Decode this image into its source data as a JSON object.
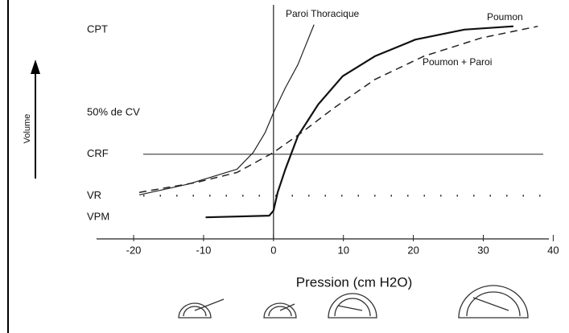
{
  "chart_data": {
    "type": "line",
    "x_label": "Pression (cm H2O)",
    "y_label": "Volume",
    "xlim": [
      -21.5,
      40.3
    ],
    "xticks": [
      -20,
      -10,
      0,
      10,
      20,
      30,
      40
    ],
    "ylim": [
      -26,
      113
    ],
    "yticks": [
      {
        "value": 100,
        "label": "CPT"
      },
      {
        "value": 50,
        "label": "50% de CV"
      },
      {
        "value": 25,
        "label": "CRF"
      },
      {
        "value": 0,
        "label": "VR"
      },
      {
        "value": -13,
        "label": "VPM"
      }
    ],
    "hlines": [
      {
        "y": 25,
        "style": "solid"
      },
      {
        "y": 0,
        "style": "dotted"
      }
    ],
    "series": [
      {
        "name": "Paroi Thoracique",
        "color": "#222222",
        "dash": false,
        "width": 1.2,
        "x": [
          -19.2,
          -12.2,
          -5.2,
          -2.9,
          -1.2,
          0,
          1.7,
          3.5,
          5.8
        ],
        "values": [
          0.5,
          7,
          16,
          26,
          38,
          50,
          65,
          79,
          103
        ]
      },
      {
        "name": "Poumon",
        "color": "#111111",
        "dash": false,
        "width": 2.2,
        "x": [
          -9.7,
          -0.6,
          0,
          0.6,
          1.7,
          3.5,
          6.4,
          9.9,
          14.5,
          20.3,
          27.3,
          34.3
        ],
        "values": [
          -13,
          -12,
          -9,
          2,
          16,
          36,
          55,
          72,
          84,
          94,
          100,
          102
        ]
      },
      {
        "name": "Poumon + Paroi",
        "color": "#222222",
        "dash": true,
        "width": 1.5,
        "x": [
          -19.2,
          -11,
          -5.2,
          0,
          4,
          8.7,
          14.5,
          21.5,
          29.7,
          37.8
        ],
        "values": [
          2,
          8,
          14,
          26,
          38,
          53,
          70,
          84,
          95,
          102
        ]
      }
    ]
  }
}
